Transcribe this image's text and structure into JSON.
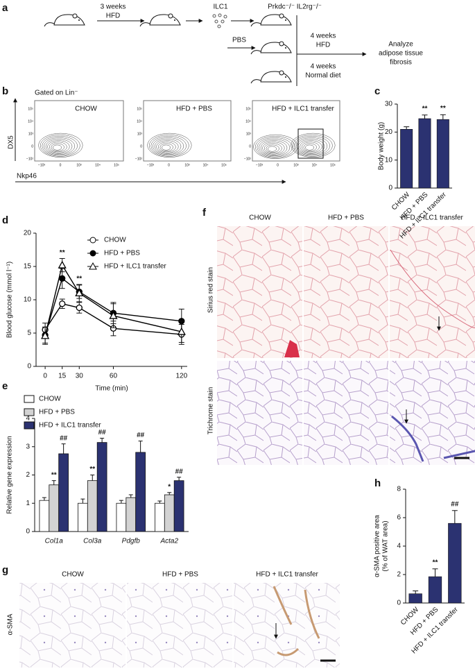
{
  "panels": [
    "a",
    "b",
    "c",
    "d",
    "e",
    "f",
    "g",
    "h"
  ],
  "diagram": {
    "step1_time": "3 weeks",
    "step1_diet": "HFD",
    "ilc1": "ILC1",
    "mouse_strain": "Prkdc⁻/⁻ IL2rg⁻/⁻",
    "pbs": "PBS",
    "group_time": "4 weeks",
    "group_diet": "HFD",
    "normal_time": "4 weeks",
    "normal_diet": "Normal diet",
    "outcome": [
      "Analyze",
      "adipose tissue",
      "fibrosis"
    ]
  },
  "flow": {
    "gate": "Gated on Lin⁻",
    "y_label": "DX5",
    "x_label": "Nkp46",
    "titles": [
      "CHOW",
      "HFD + PBS",
      "HFD + ILC1 transfer"
    ],
    "x_ticks": [
      "−10³",
      "0",
      "10³",
      "10⁴",
      "10⁵"
    ],
    "y_ticks": [
      "10⁵",
      "10⁴",
      "10³",
      "0",
      "−10²"
    ]
  },
  "histology": {
    "columns": [
      "CHOW",
      "HFD + PBS",
      "HFD + ILC1 transfer"
    ],
    "rows": [
      "Sirius red stain",
      "Trichrome stain"
    ]
  },
  "ihc": {
    "columns": [
      "CHOW",
      "HFD + PBS",
      "HFD + ILC1 transfer"
    ],
    "row": "α-SMA"
  },
  "chart_data": [
    {
      "type": "bar",
      "ylabel": [
        "Body weight (g)"
      ],
      "categories": [
        "CHOW",
        "HFD + PBS",
        "HFD + ILC1 transfer"
      ],
      "values": [
        21,
        24.8,
        24.5
      ],
      "errors": [
        0.9,
        1.3,
        1.7
      ],
      "significance": [
        null,
        "**",
        "**"
      ],
      "color": "#2b3271",
      "ylim": [
        0,
        30
      ],
      "yticks": [
        0,
        10,
        20,
        30
      ]
    },
    {
      "type": "line",
      "xlabel": "Time (min)",
      "ylabel": [
        "Blood glucose (mmol l⁻¹)"
      ],
      "x": [
        0,
        15,
        30,
        60,
        120
      ],
      "xlim": [
        -8,
        125
      ],
      "xticks": [
        0,
        15,
        30,
        60,
        120
      ],
      "ylim": [
        0,
        20
      ],
      "yticks": [
        0,
        5,
        10,
        15,
        20
      ],
      "significance": [
        null,
        "**",
        "**",
        null,
        null
      ],
      "series": [
        {
          "name": "CHOW",
          "marker": "open-circle",
          "color": "#000000",
          "values": [
            5.5,
            9.4,
            8.8,
            5.7,
            4.8
          ],
          "errors": [
            1.0,
            0.7,
            0.8,
            1.1,
            1.5
          ]
        },
        {
          "name": "HFD + PBS",
          "marker": "filled-circle",
          "color": "#000000",
          "values": [
            4.7,
            13.2,
            11.2,
            8.0,
            6.8
          ],
          "errors": [
            1.2,
            1.5,
            1.0,
            1.6,
            1.8
          ]
        },
        {
          "name": "HFD + ILC1 transfer",
          "marker": "open-triangle",
          "color": "#000000",
          "values": [
            4.6,
            15.2,
            11.0,
            7.6,
            5.2
          ],
          "errors": [
            1.3,
            1.0,
            1.3,
            1.8,
            1.6
          ]
        }
      ]
    },
    {
      "type": "grouped-bar",
      "ylabel": [
        "Relative gene expression"
      ],
      "categories": [
        "Col1a",
        "Col3a",
        "Pdgfb",
        "Acta2"
      ],
      "ylim": [
        0,
        4
      ],
      "yticks": [
        0,
        1,
        2,
        3,
        4
      ],
      "series": [
        {
          "name": "CHOW",
          "color": "#ffffff",
          "values": [
            1.1,
            1.0,
            1.0,
            1.0
          ],
          "errors": [
            0.1,
            0.15,
            0.1,
            0.08
          ],
          "significance": [
            null,
            null,
            null,
            null
          ]
        },
        {
          "name": "HFD + PBS",
          "color": "#d3d3d3",
          "values": [
            1.65,
            1.8,
            1.2,
            1.3
          ],
          "errors": [
            0.15,
            0.2,
            0.1,
            0.08
          ],
          "significance": [
            "**",
            "**",
            null,
            "*"
          ]
        },
        {
          "name": "HFD + ILC1 transfer",
          "color": "#2b3271",
          "values": [
            2.75,
            3.15,
            2.8,
            1.8
          ],
          "errors": [
            0.35,
            0.15,
            0.4,
            0.12
          ],
          "significance": [
            "##",
            "##",
            "##",
            "##"
          ]
        }
      ]
    },
    {
      "type": "bar",
      "ylabel": [
        "α-SMA positive area",
        "(% of WAT area)"
      ],
      "categories": [
        "CHOW",
        "HFD + PBS",
        "HFD + ILC1 transfer"
      ],
      "values": [
        0.65,
        1.85,
        5.6
      ],
      "errors": [
        0.2,
        0.55,
        0.9
      ],
      "significance": [
        null,
        "**",
        "##"
      ],
      "color": "#2b3271",
      "ylim": [
        0,
        8
      ],
      "yticks": [
        0,
        2,
        4,
        6,
        8
      ]
    }
  ]
}
